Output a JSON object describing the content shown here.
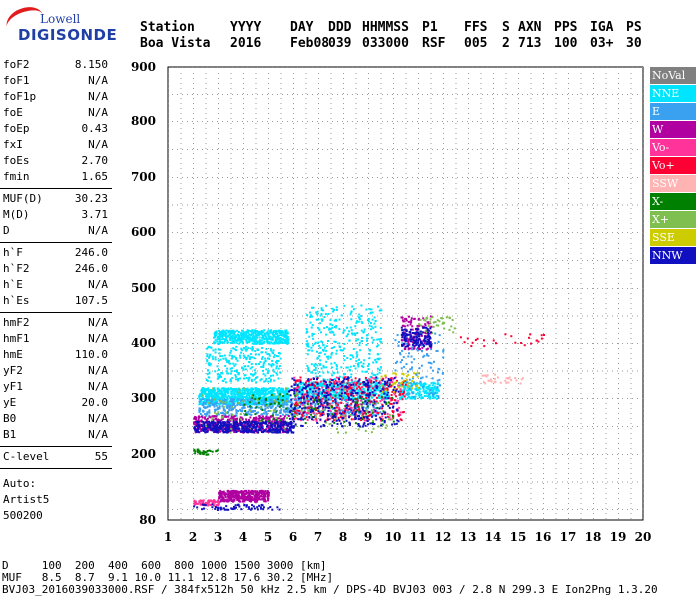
{
  "logo": {
    "line1": "Lowell",
    "line2": "DIGISONDE"
  },
  "header": {
    "row1": [
      "Station",
      "YYYY",
      "DAY",
      "DDD",
      "HHMMSS",
      "P1",
      "FFS",
      "S",
      "AXN",
      "PPS",
      "IGA",
      "PS"
    ],
    "row2": [
      "Boa Vista",
      "2016",
      "Feb08",
      "039",
      "033000",
      "RSF",
      "005",
      "2",
      "713",
      "100",
      "03+",
      "30"
    ]
  },
  "params": {
    "g1": [
      {
        "label": "foF2",
        "value": "8.150"
      },
      {
        "label": "foF1",
        "value": "N/A"
      },
      {
        "label": "foF1p",
        "value": "N/A"
      },
      {
        "label": "foE",
        "value": "N/A"
      },
      {
        "label": "foEp",
        "value": "0.43"
      },
      {
        "label": "fxI",
        "value": "N/A"
      },
      {
        "label": "foEs",
        "value": "2.70"
      },
      {
        "label": "fmin",
        "value": "1.65"
      }
    ],
    "g2": [
      {
        "label": "MUF(D)",
        "value": "30.23"
      },
      {
        "label": "M(D)",
        "value": "3.71"
      },
      {
        "label": "D",
        "value": "N/A"
      }
    ],
    "g3": [
      {
        "label": "h`F",
        "value": "246.0"
      },
      {
        "label": "h`F2",
        "value": "246.0"
      },
      {
        "label": "h`E",
        "value": "N/A"
      },
      {
        "label": "h`Es",
        "value": "107.5"
      }
    ],
    "g4": [
      {
        "label": "hmF2",
        "value": "N/A"
      },
      {
        "label": "hmF1",
        "value": "N/A"
      },
      {
        "label": "hmE",
        "value": "110.0"
      },
      {
        "label": "yF2",
        "value": "N/A"
      },
      {
        "label": "yF1",
        "value": "N/A"
      },
      {
        "label": "yE",
        "value": "20.0"
      },
      {
        "label": "B0",
        "value": "N/A"
      },
      {
        "label": "B1",
        "value": "N/A"
      }
    ],
    "g5": [
      {
        "label": "C-level",
        "value": "55"
      }
    ],
    "auto": [
      "Auto:",
      "Artist5",
      "500200"
    ]
  },
  "legend": [
    {
      "label": "NoVal",
      "color": "#808080"
    },
    {
      "label": "NNE",
      "color": "#00e5ff"
    },
    {
      "label": "E",
      "color": "#3aa0f0"
    },
    {
      "label": "W",
      "color": "#b000a0"
    },
    {
      "label": "Vo-",
      "color": "#ff3399"
    },
    {
      "label": "Vo+",
      "color": "#ff0033"
    },
    {
      "label": "SSW",
      "color": "#ffb3b3"
    },
    {
      "label": "X-",
      "color": "#008000"
    },
    {
      "label": "X+",
      "color": "#7fbf4f"
    },
    {
      "label": "SSE",
      "color": "#cccc00"
    },
    {
      "label": "NNW",
      "color": "#1010c0"
    }
  ],
  "footer": {
    "line1": "D     100  200  400  600  800 1000 1500 3000 [km]",
    "line2": "MUF   8.5  8.7  9.1 10.0 11.1 12.8 17.6 30.2 [MHz]",
    "line3": "BVJ03_2016039033000.RSF / 384fx512h 50 kHz 2.5 km / DPS-4D BVJ03 003 / 2.8 N 299.3 E Ion2Png 1.3.20"
  },
  "chart_data": {
    "type": "scatter",
    "xlim": [
      1,
      20
    ],
    "ylim": [
      80,
      900
    ],
    "x_ticks": [
      1,
      2,
      3,
      4,
      5,
      6,
      7,
      8,
      9,
      10,
      11,
      12,
      13,
      14,
      15,
      16,
      17,
      18,
      19,
      20
    ],
    "y_ticks": [
      80,
      200,
      300,
      400,
      500,
      600,
      700,
      800,
      900
    ],
    "grid": true,
    "series": [
      {
        "name": "NNE",
        "color": "#00e5ff",
        "clusters": [
          {
            "x": [
              2.2,
              5.8
            ],
            "y": [
              290,
              320
            ],
            "n": 900
          },
          {
            "x": [
              2.8,
              5.8
            ],
            "y": [
              400,
              425
            ],
            "n": 450
          },
          {
            "x": [
              6.0,
              9.8
            ],
            "y": [
              300,
              330
            ],
            "n": 500
          },
          {
            "x": [
              6.5,
              9.5
            ],
            "y": [
              330,
              470
            ],
            "n": 350
          },
          {
            "x": [
              10.2,
              11.8
            ],
            "y": [
              300,
              330
            ],
            "n": 200
          },
          {
            "x": [
              2.5,
              5.5
            ],
            "y": [
              330,
              395
            ],
            "n": 250
          }
        ]
      },
      {
        "name": "E",
        "color": "#3aa0f0",
        "clusters": [
          {
            "x": [
              2.2,
              6.0
            ],
            "y": [
              270,
              300
            ],
            "n": 300
          },
          {
            "x": [
              6.0,
              9.5
            ],
            "y": [
              270,
              300
            ],
            "n": 200
          },
          {
            "x": [
              10.0,
              12.0
            ],
            "y": [
              300,
              420
            ],
            "n": 120
          }
        ]
      },
      {
        "name": "W",
        "color": "#b000a0",
        "clusters": [
          {
            "x": [
              2.0,
              5.8
            ],
            "y": [
              240,
              270
            ],
            "n": 500
          },
          {
            "x": [
              3.0,
              5.0
            ],
            "y": [
              115,
              135
            ],
            "n": 350
          },
          {
            "x": [
              10.3,
              11.5
            ],
            "y": [
              390,
              450
            ],
            "n": 120
          }
        ]
      },
      {
        "name": "Vo-",
        "color": "#ff3399",
        "clusters": [
          {
            "x": [
              6.0,
              10.3
            ],
            "y": [
              260,
              340
            ],
            "n": 200
          },
          {
            "x": [
              2.0,
              3.0
            ],
            "y": [
              108,
              118
            ],
            "n": 60
          }
        ]
      },
      {
        "name": "Vo+",
        "color": "#ff0033",
        "clusters": [
          {
            "x": [
              6.0,
              10.5
            ],
            "y": [
              262,
              340
            ],
            "n": 250
          },
          {
            "x": [
              12.0,
              16.0
            ],
            "y": [
              395,
              420
            ],
            "n": 25
          }
        ]
      },
      {
        "name": "SSW",
        "color": "#ffb3b3",
        "clusters": [
          {
            "x": [
              13.5,
              15.2
            ],
            "y": [
              328,
              345
            ],
            "n": 30
          }
        ]
      },
      {
        "name": "X-",
        "color": "#008000",
        "clusters": [
          {
            "x": [
              4.0,
              10.0
            ],
            "y": [
              250,
              310
            ],
            "n": 120
          },
          {
            "x": [
              2.0,
              3.0
            ],
            "y": [
              200,
              210
            ],
            "n": 30
          }
        ]
      },
      {
        "name": "X+",
        "color": "#7fbf4f",
        "clusters": [
          {
            "x": [
              2.0,
              10.0
            ],
            "y": [
              240,
              320
            ],
            "n": 120
          },
          {
            "x": [
              11.0,
              12.5
            ],
            "y": [
              420,
              450
            ],
            "n": 40
          }
        ]
      },
      {
        "name": "SSE",
        "color": "#cccc00",
        "clusters": [
          {
            "x": [
              9.5,
              11.0
            ],
            "y": [
              310,
              350
            ],
            "n": 40
          }
        ]
      },
      {
        "name": "NNW",
        "color": "#1010c0",
        "clusters": [
          {
            "x": [
              2.0,
              6.0
            ],
            "y": [
              240,
              260
            ],
            "n": 400
          },
          {
            "x": [
              5.8,
              10.2
            ],
            "y": [
              250,
              340
            ],
            "n": 350
          },
          {
            "x": [
              2.0,
              5.5
            ],
            "y": [
              100,
              110
            ],
            "n": 60
          },
          {
            "x": [
              10.3,
              11.5
            ],
            "y": [
              395,
              430
            ],
            "n": 120
          }
        ]
      }
    ]
  }
}
